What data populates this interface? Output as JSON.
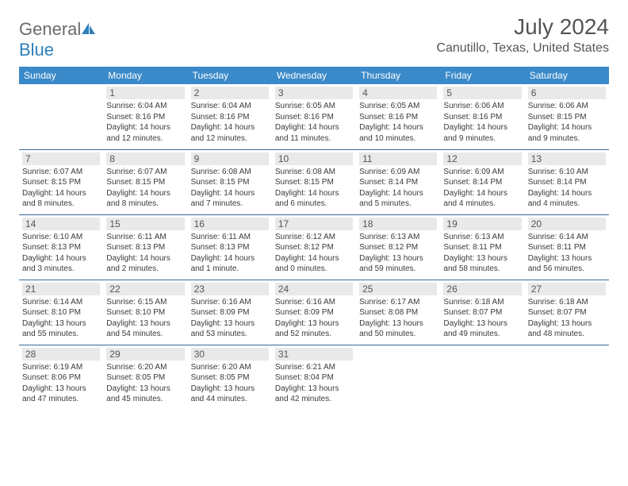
{
  "logo": {
    "text_general": "General",
    "text_blue": "Blue"
  },
  "header": {
    "month": "July 2024",
    "location": "Canutillo, Texas, United States"
  },
  "colors": {
    "header_bg": "#3a89c9",
    "header_text": "#ffffff",
    "cell_border": "#3a6a98",
    "daynum_bg": "#e9e9e9",
    "daynum_text": "#555555",
    "body_text": "#3a3a3a",
    "title_text": "#555555",
    "logo_gray": "#6a6a6a",
    "logo_blue": "#2f7fbb"
  },
  "weekdays": [
    "Sunday",
    "Monday",
    "Tuesday",
    "Wednesday",
    "Thursday",
    "Friday",
    "Saturday"
  ],
  "weeks": [
    [
      null,
      {
        "day": "1",
        "sunrise": "Sunrise: 6:04 AM",
        "sunset": "Sunset: 8:16 PM",
        "dl1": "Daylight: 14 hours",
        "dl2": "and 12 minutes."
      },
      {
        "day": "2",
        "sunrise": "Sunrise: 6:04 AM",
        "sunset": "Sunset: 8:16 PM",
        "dl1": "Daylight: 14 hours",
        "dl2": "and 12 minutes."
      },
      {
        "day": "3",
        "sunrise": "Sunrise: 6:05 AM",
        "sunset": "Sunset: 8:16 PM",
        "dl1": "Daylight: 14 hours",
        "dl2": "and 11 minutes."
      },
      {
        "day": "4",
        "sunrise": "Sunrise: 6:05 AM",
        "sunset": "Sunset: 8:16 PM",
        "dl1": "Daylight: 14 hours",
        "dl2": "and 10 minutes."
      },
      {
        "day": "5",
        "sunrise": "Sunrise: 6:06 AM",
        "sunset": "Sunset: 8:16 PM",
        "dl1": "Daylight: 14 hours",
        "dl2": "and 9 minutes."
      },
      {
        "day": "6",
        "sunrise": "Sunrise: 6:06 AM",
        "sunset": "Sunset: 8:15 PM",
        "dl1": "Daylight: 14 hours",
        "dl2": "and 9 minutes."
      }
    ],
    [
      {
        "day": "7",
        "sunrise": "Sunrise: 6:07 AM",
        "sunset": "Sunset: 8:15 PM",
        "dl1": "Daylight: 14 hours",
        "dl2": "and 8 minutes."
      },
      {
        "day": "8",
        "sunrise": "Sunrise: 6:07 AM",
        "sunset": "Sunset: 8:15 PM",
        "dl1": "Daylight: 14 hours",
        "dl2": "and 8 minutes."
      },
      {
        "day": "9",
        "sunrise": "Sunrise: 6:08 AM",
        "sunset": "Sunset: 8:15 PM",
        "dl1": "Daylight: 14 hours",
        "dl2": "and 7 minutes."
      },
      {
        "day": "10",
        "sunrise": "Sunrise: 6:08 AM",
        "sunset": "Sunset: 8:15 PM",
        "dl1": "Daylight: 14 hours",
        "dl2": "and 6 minutes."
      },
      {
        "day": "11",
        "sunrise": "Sunrise: 6:09 AM",
        "sunset": "Sunset: 8:14 PM",
        "dl1": "Daylight: 14 hours",
        "dl2": "and 5 minutes."
      },
      {
        "day": "12",
        "sunrise": "Sunrise: 6:09 AM",
        "sunset": "Sunset: 8:14 PM",
        "dl1": "Daylight: 14 hours",
        "dl2": "and 4 minutes."
      },
      {
        "day": "13",
        "sunrise": "Sunrise: 6:10 AM",
        "sunset": "Sunset: 8:14 PM",
        "dl1": "Daylight: 14 hours",
        "dl2": "and 4 minutes."
      }
    ],
    [
      {
        "day": "14",
        "sunrise": "Sunrise: 6:10 AM",
        "sunset": "Sunset: 8:13 PM",
        "dl1": "Daylight: 14 hours",
        "dl2": "and 3 minutes."
      },
      {
        "day": "15",
        "sunrise": "Sunrise: 6:11 AM",
        "sunset": "Sunset: 8:13 PM",
        "dl1": "Daylight: 14 hours",
        "dl2": "and 2 minutes."
      },
      {
        "day": "16",
        "sunrise": "Sunrise: 6:11 AM",
        "sunset": "Sunset: 8:13 PM",
        "dl1": "Daylight: 14 hours",
        "dl2": "and 1 minute."
      },
      {
        "day": "17",
        "sunrise": "Sunrise: 6:12 AM",
        "sunset": "Sunset: 8:12 PM",
        "dl1": "Daylight: 14 hours",
        "dl2": "and 0 minutes."
      },
      {
        "day": "18",
        "sunrise": "Sunrise: 6:13 AM",
        "sunset": "Sunset: 8:12 PM",
        "dl1": "Daylight: 13 hours",
        "dl2": "and 59 minutes."
      },
      {
        "day": "19",
        "sunrise": "Sunrise: 6:13 AM",
        "sunset": "Sunset: 8:11 PM",
        "dl1": "Daylight: 13 hours",
        "dl2": "and 58 minutes."
      },
      {
        "day": "20",
        "sunrise": "Sunrise: 6:14 AM",
        "sunset": "Sunset: 8:11 PM",
        "dl1": "Daylight: 13 hours",
        "dl2": "and 56 minutes."
      }
    ],
    [
      {
        "day": "21",
        "sunrise": "Sunrise: 6:14 AM",
        "sunset": "Sunset: 8:10 PM",
        "dl1": "Daylight: 13 hours",
        "dl2": "and 55 minutes."
      },
      {
        "day": "22",
        "sunrise": "Sunrise: 6:15 AM",
        "sunset": "Sunset: 8:10 PM",
        "dl1": "Daylight: 13 hours",
        "dl2": "and 54 minutes."
      },
      {
        "day": "23",
        "sunrise": "Sunrise: 6:16 AM",
        "sunset": "Sunset: 8:09 PM",
        "dl1": "Daylight: 13 hours",
        "dl2": "and 53 minutes."
      },
      {
        "day": "24",
        "sunrise": "Sunrise: 6:16 AM",
        "sunset": "Sunset: 8:09 PM",
        "dl1": "Daylight: 13 hours",
        "dl2": "and 52 minutes."
      },
      {
        "day": "25",
        "sunrise": "Sunrise: 6:17 AM",
        "sunset": "Sunset: 8:08 PM",
        "dl1": "Daylight: 13 hours",
        "dl2": "and 50 minutes."
      },
      {
        "day": "26",
        "sunrise": "Sunrise: 6:18 AM",
        "sunset": "Sunset: 8:07 PM",
        "dl1": "Daylight: 13 hours",
        "dl2": "and 49 minutes."
      },
      {
        "day": "27",
        "sunrise": "Sunrise: 6:18 AM",
        "sunset": "Sunset: 8:07 PM",
        "dl1": "Daylight: 13 hours",
        "dl2": "and 48 minutes."
      }
    ],
    [
      {
        "day": "28",
        "sunrise": "Sunrise: 6:19 AM",
        "sunset": "Sunset: 8:06 PM",
        "dl1": "Daylight: 13 hours",
        "dl2": "and 47 minutes."
      },
      {
        "day": "29",
        "sunrise": "Sunrise: 6:20 AM",
        "sunset": "Sunset: 8:05 PM",
        "dl1": "Daylight: 13 hours",
        "dl2": "and 45 minutes."
      },
      {
        "day": "30",
        "sunrise": "Sunrise: 6:20 AM",
        "sunset": "Sunset: 8:05 PM",
        "dl1": "Daylight: 13 hours",
        "dl2": "and 44 minutes."
      },
      {
        "day": "31",
        "sunrise": "Sunrise: 6:21 AM",
        "sunset": "Sunset: 8:04 PM",
        "dl1": "Daylight: 13 hours",
        "dl2": "and 42 minutes."
      },
      null,
      null,
      null
    ]
  ]
}
